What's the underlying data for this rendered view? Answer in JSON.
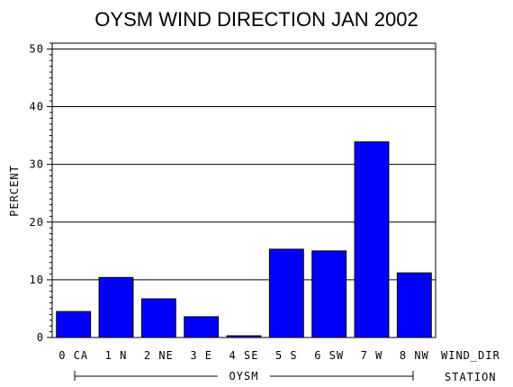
{
  "chart_data": {
    "type": "bar",
    "title": "OYSM WIND DIRECTION JAN 2002",
    "ylabel": "PERCENT",
    "xlabel": "WIND_DIR",
    "group_axis_label": "STATION",
    "group_label": "OYSM",
    "categories": [
      "0 CA",
      "1 N",
      "2 NE",
      "3 E",
      "4 SE",
      "5 S",
      "6 SW",
      "7 W",
      "8 NW"
    ],
    "values": [
      4.5,
      10.4,
      6.7,
      3.6,
      0.3,
      15.3,
      15.0,
      33.9,
      11.2
    ],
    "ylim": [
      0,
      51
    ],
    "yticks": [
      0,
      10,
      20,
      30,
      40,
      50
    ],
    "grid": true,
    "bar_color": "#0000FF"
  }
}
